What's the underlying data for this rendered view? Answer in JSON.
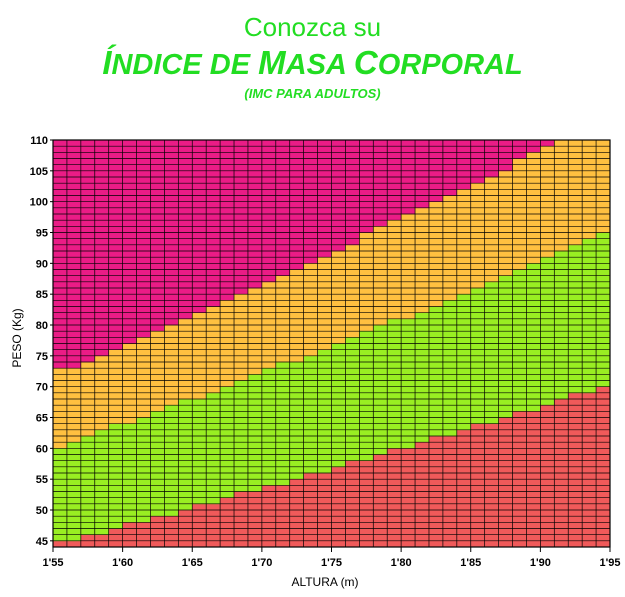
{
  "header": {
    "line1": "Conozca su",
    "line2_parts": [
      "Í",
      "NDICE DE ",
      "M",
      "ASA ",
      "C",
      "ORPORAL"
    ],
    "subtitle": "(IMC PARA ADULTOS)"
  },
  "chart_data": {
    "type": "heatmap",
    "title": "Conozca su ÍNDICE DE MASA CORPORAL",
    "subtitle": "(IMC PARA ADULTOS)",
    "xlabel": "ALTURA (m)",
    "ylabel": "PESO (Kg)",
    "xlim": [
      1.55,
      1.95
    ],
    "ylim": [
      44,
      110
    ],
    "x_ticks": [
      "1'55",
      "1'60",
      "1'65",
      "1'70",
      "1'75",
      "1'80",
      "1'85",
      "1'90",
      "1'95"
    ],
    "y_ticks": [
      45,
      50,
      55,
      60,
      65,
      70,
      75,
      80,
      85,
      90,
      95,
      100,
      105,
      110
    ],
    "x_step": 0.01,
    "y_step": 1,
    "grid": true,
    "bands": [
      {
        "color": "#f05a5a",
        "bmi_from": 0,
        "bmi_to": 18.5
      },
      {
        "color": "#99ee22",
        "bmi_from": 18.5,
        "bmi_to": 25
      },
      {
        "color": "#ffc040",
        "bmi_from": 25,
        "bmi_to": 30
      },
      {
        "color": "#ea1c86",
        "bmi_from": 30,
        "bmi_to": 999
      }
    ]
  }
}
